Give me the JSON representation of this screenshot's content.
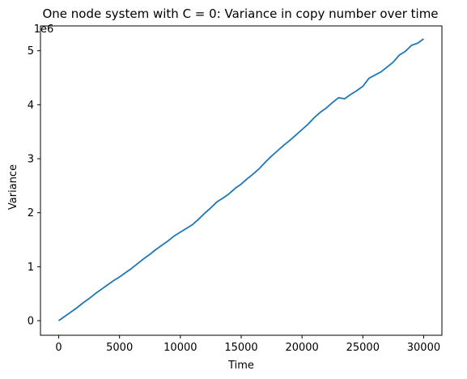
{
  "chart_data": {
    "type": "line",
    "title": "One node system with C = 0: Variance in copy number over time",
    "xlabel": "Time",
    "ylabel": "Variance",
    "y_offset_label": "1e6",
    "xlim": [
      -1500,
      31500
    ],
    "ylim": [
      -0.27,
      5.46
    ],
    "x_ticks": [
      0,
      5000,
      10000,
      15000,
      20000,
      25000,
      30000
    ],
    "x_tick_labels": [
      "0",
      "5000",
      "10000",
      "15000",
      "20000",
      "25000",
      "30000"
    ],
    "y_ticks": [
      0,
      1,
      2,
      3,
      4,
      5
    ],
    "y_tick_labels": [
      "0",
      "1",
      "2",
      "3",
      "4",
      "5"
    ],
    "grid": false,
    "series": [
      {
        "name": "Variance",
        "color": "#1f77b4",
        "x": [
          0,
          500,
          1000,
          1500,
          2000,
          2500,
          3000,
          3500,
          4000,
          4500,
          5000,
          5500,
          6000,
          6500,
          7000,
          7500,
          8000,
          8500,
          9000,
          9500,
          10000,
          10500,
          11000,
          11500,
          12000,
          12500,
          13000,
          13500,
          14000,
          14500,
          15000,
          15500,
          16000,
          16500,
          17000,
          17500,
          18000,
          18500,
          19000,
          19500,
          20000,
          20500,
          21000,
          21500,
          22000,
          22500,
          23000,
          23500,
          24000,
          24500,
          25000,
          25500,
          26000,
          26500,
          27000,
          27500,
          28000,
          28500,
          29000,
          29500,
          30000
        ],
        "values": [
          0.0,
          0.08,
          0.16,
          0.24,
          0.33,
          0.41,
          0.5,
          0.58,
          0.66,
          0.74,
          0.81,
          0.89,
          0.97,
          1.06,
          1.15,
          1.23,
          1.32,
          1.4,
          1.48,
          1.57,
          1.64,
          1.71,
          1.78,
          1.88,
          1.99,
          2.09,
          2.2,
          2.27,
          2.35,
          2.45,
          2.53,
          2.63,
          2.72,
          2.82,
          2.94,
          3.05,
          3.15,
          3.25,
          3.34,
          3.44,
          3.54,
          3.64,
          3.76,
          3.86,
          3.94,
          4.04,
          4.13,
          4.11,
          4.19,
          4.26,
          4.34,
          4.49,
          4.55,
          4.61,
          4.7,
          4.79,
          4.92,
          4.99,
          5.1,
          5.14,
          5.22
        ]
      }
    ]
  }
}
